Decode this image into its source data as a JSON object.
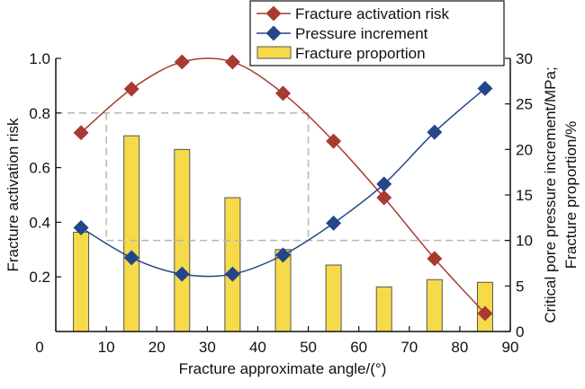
{
  "chart_data": {
    "type": "bar+line",
    "xlabel": "Fracture approximate angle/(°)",
    "ylabel_left": "Fracture activation risk",
    "ylabel_right_line1": "Critical pore pressure increment/MPa;",
    "ylabel_right_line2": "Fracture proportion/%",
    "x": [
      5,
      15,
      25,
      35,
      45,
      55,
      65,
      75,
      85
    ],
    "xlim": [
      0,
      90
    ],
    "xticks": [
      "0",
      "10",
      "20",
      "30",
      "40",
      "50",
      "60",
      "70",
      "80",
      "90"
    ],
    "ylim_left": [
      0,
      1.0
    ],
    "yticks_left": [
      "0.2",
      "0.4",
      "0.6",
      "0.8",
      "1.0"
    ],
    "ylim_right": [
      0,
      30
    ],
    "yticks_right": [
      "0",
      "5",
      "10",
      "15",
      "20",
      "25",
      "30"
    ],
    "series": [
      {
        "name": "Fracture activation risk",
        "axis": "left",
        "kind": "line",
        "color": "#a83a32",
        "values": [
          0.728,
          0.888,
          0.987,
          0.987,
          0.872,
          0.697,
          0.49,
          0.267,
          0.066
        ]
      },
      {
        "name": "Pressure increment",
        "axis": "right",
        "kind": "line",
        "color": "#23478a",
        "values": [
          11.4,
          8.1,
          6.3,
          6.3,
          8.4,
          11.9,
          16.2,
          21.9,
          26.7
        ]
      },
      {
        "name": "Fracture proportion",
        "axis": "right",
        "kind": "bar",
        "color": "#f7da4a",
        "values": [
          10.9,
          21.5,
          20.0,
          14.7,
          9.0,
          7.3,
          4.9,
          5.7,
          5.4
        ]
      }
    ],
    "annotations": {
      "dashed_box_x": [
        10,
        50
      ],
      "dashed_line_left_y": 0.8,
      "dashed_line_right_y": 10
    },
    "legend_placement": "top-right"
  }
}
